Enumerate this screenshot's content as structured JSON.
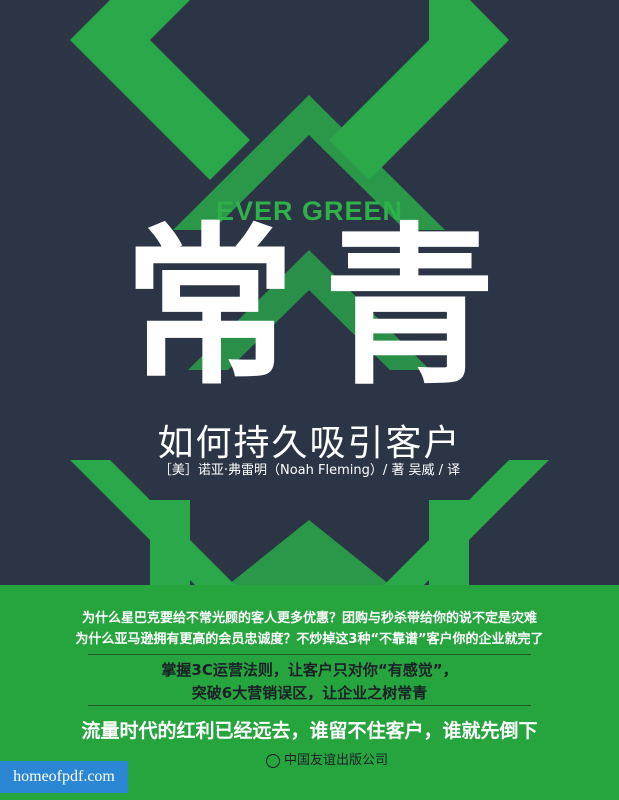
{
  "book": {
    "subtitle_en": "EVER GREEN",
    "title": "常青",
    "subtitle_cn": "如何持久吸引客户",
    "credits": "［美］诺亚·弗雷明（Noah Fleming）/ 著    吴威 / 译"
  },
  "band": {
    "questions": [
      "为什么星巴克要给不常光顾的客人更多优惠？团购与秒杀带给你的说不定是灾难",
      "为什么亚马逊拥有更高的会员忠诚度？不炒掉这3种“不靠谱”客户你的企业就完了"
    ],
    "pitch": [
      "掌握3C运营法则，让客户只对你“有感觉”，",
      "突破6大营销误区，让企业之树常青"
    ],
    "slogan": "流量时代的红利已经远去，谁留不住客户，谁就先倒下"
  },
  "publisher": "中国友谊出版公司",
  "watermark": "homeofpdf.com",
  "colors": {
    "background": "#2b3546",
    "accent_green": "#26a53f",
    "text_white": "#ffffff"
  }
}
